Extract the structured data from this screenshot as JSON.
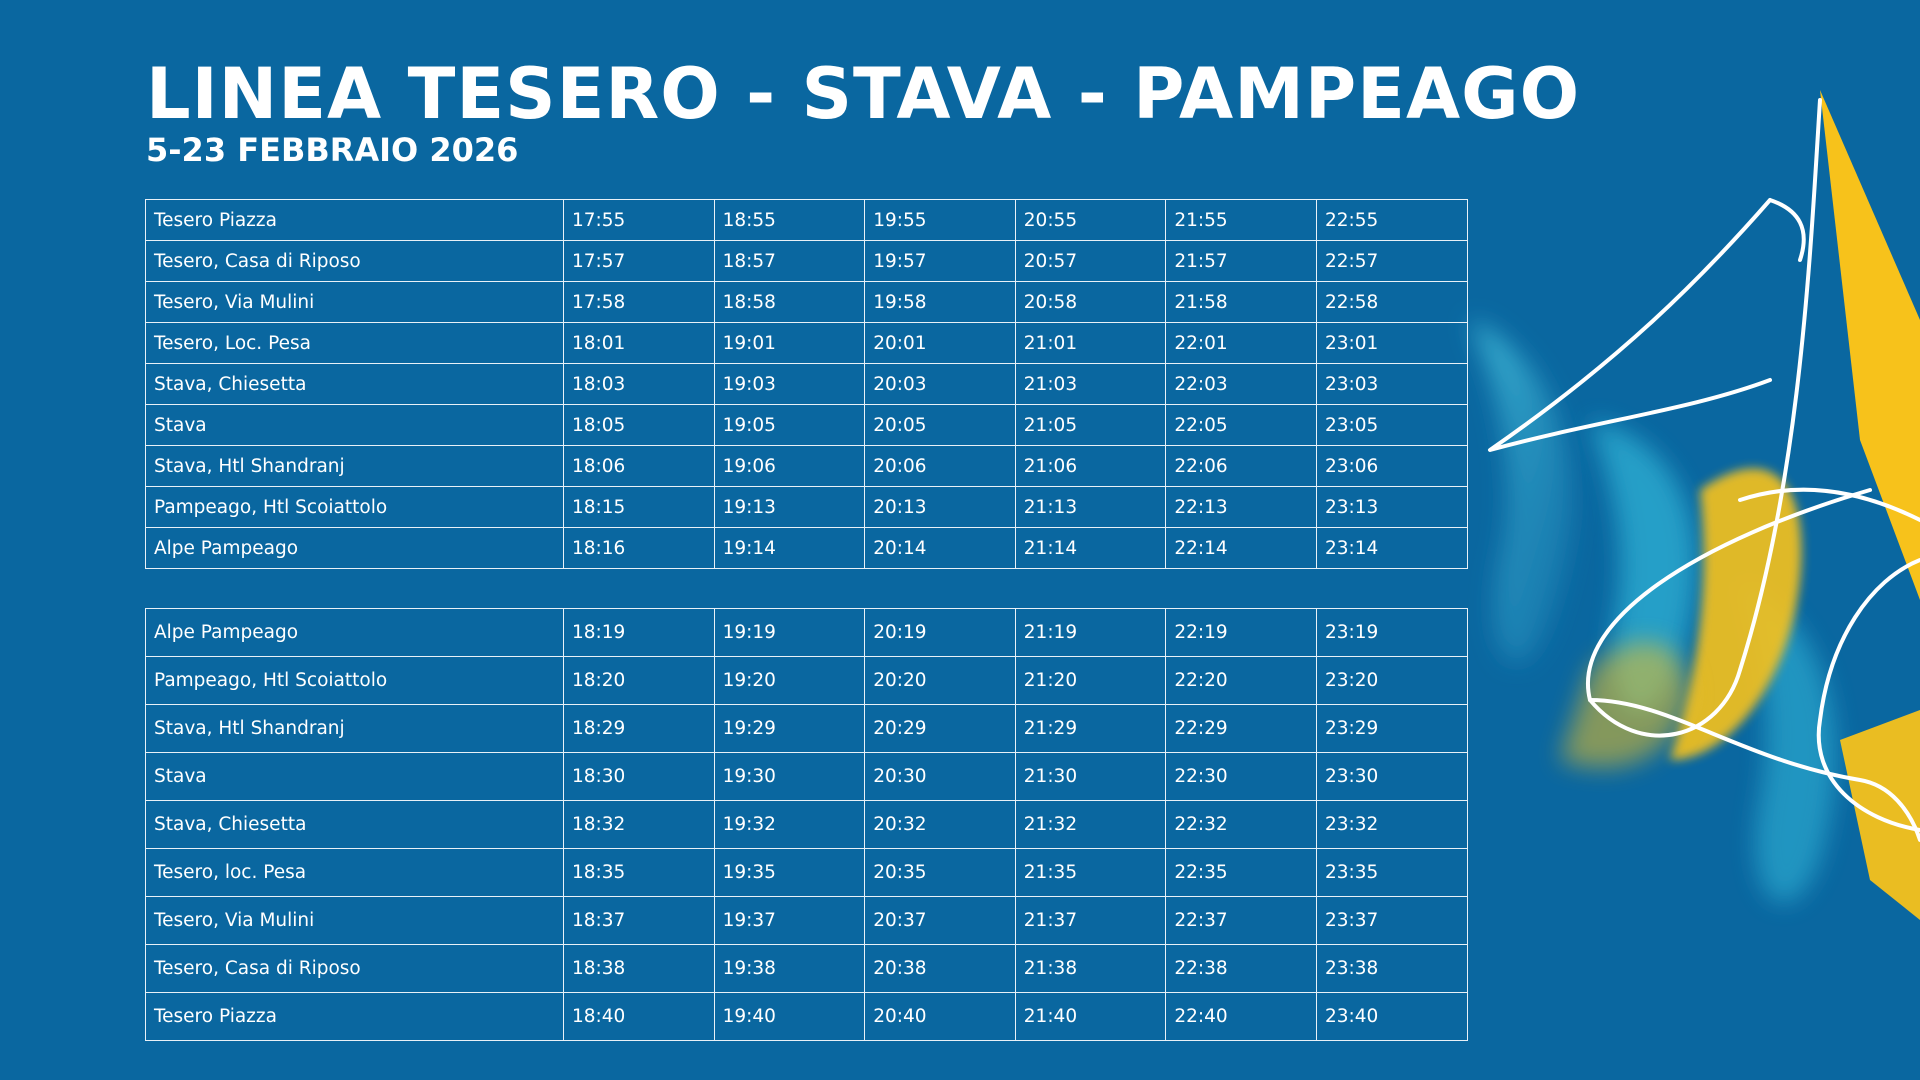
{
  "title": "LINEA TESERO - STAVA - PAMPEAGO",
  "subtitle": "5-23 FEBBRAIO 2026",
  "timetables": [
    {
      "rows": [
        {
          "stop": "Tesero Piazza",
          "times": [
            "17:55",
            "18:55",
            "19:55",
            "20:55",
            "21:55",
            "22:55"
          ]
        },
        {
          "stop": "Tesero, Casa di Riposo",
          "times": [
            "17:57",
            "18:57",
            "19:57",
            "20:57",
            "21:57",
            "22:57"
          ]
        },
        {
          "stop": "Tesero, Via Mulini",
          "times": [
            "17:58",
            "18:58",
            "19:58",
            "20:58",
            "21:58",
            "22:58"
          ]
        },
        {
          "stop": "Tesero, Loc. Pesa",
          "times": [
            "18:01",
            "19:01",
            "20:01",
            "21:01",
            "22:01",
            "23:01"
          ]
        },
        {
          "stop": "Stava, Chiesetta",
          "times": [
            "18:03",
            "19:03",
            "20:03",
            "21:03",
            "22:03",
            "23:03"
          ]
        },
        {
          "stop": "Stava",
          "times": [
            "18:05",
            "19:05",
            "20:05",
            "21:05",
            "22:05",
            "23:05"
          ]
        },
        {
          "stop": "Stava, Htl Shandranj",
          "times": [
            "18:06",
            "19:06",
            "20:06",
            "21:06",
            "22:06",
            "23:06"
          ]
        },
        {
          "stop": "Pampeago, Htl Scoiattolo",
          "times": [
            "18:15",
            "19:13",
            "20:13",
            "21:13",
            "22:13",
            "23:13"
          ]
        },
        {
          "stop": "Alpe Pampeago",
          "times": [
            "18:16",
            "19:14",
            "20:14",
            "21:14",
            "22:14",
            "23:14"
          ]
        }
      ]
    },
    {
      "rows": [
        {
          "stop": "Alpe Pampeago",
          "times": [
            "18:19",
            "19:19",
            "20:19",
            "21:19",
            "22:19",
            "23:19"
          ]
        },
        {
          "stop": "Pampeago, Htl Scoiattolo",
          "times": [
            "18:20",
            "19:20",
            "20:20",
            "21:20",
            "22:20",
            "23:20"
          ]
        },
        {
          "stop": "Stava, Htl Shandranj",
          "times": [
            "18:29",
            "19:29",
            "20:29",
            "21:29",
            "22:29",
            "23:29"
          ]
        },
        {
          "stop": "Stava",
          "times": [
            "18:30",
            "19:30",
            "20:30",
            "21:30",
            "22:30",
            "23:30"
          ]
        },
        {
          "stop": "Stava, Chiesetta",
          "times": [
            "18:32",
            "19:32",
            "20:32",
            "21:32",
            "22:32",
            "23:32"
          ]
        },
        {
          "stop": "Tesero, loc. Pesa",
          "times": [
            "18:35",
            "19:35",
            "20:35",
            "21:35",
            "22:35",
            "23:35"
          ]
        },
        {
          "stop": "Tesero, Via Mulini",
          "times": [
            "18:37",
            "19:37",
            "20:37",
            "21:37",
            "22:37",
            "23:37"
          ]
        },
        {
          "stop": "Tesero, Casa di Riposo",
          "times": [
            "18:38",
            "19:38",
            "20:38",
            "21:38",
            "22:38",
            "23:38"
          ]
        },
        {
          "stop": "Tesero Piazza",
          "times": [
            "18:40",
            "19:40",
            "20:40",
            "21:40",
            "22:40",
            "23:40"
          ]
        }
      ]
    }
  ],
  "colors": {
    "background": "#0a67a0",
    "grid": "#e8f1f8",
    "accent_yellow": "#f7c21b",
    "accent_cyan": "#3fb8d6"
  },
  "decoration": {
    "icon": "abstract-ribbon-graphic"
  }
}
